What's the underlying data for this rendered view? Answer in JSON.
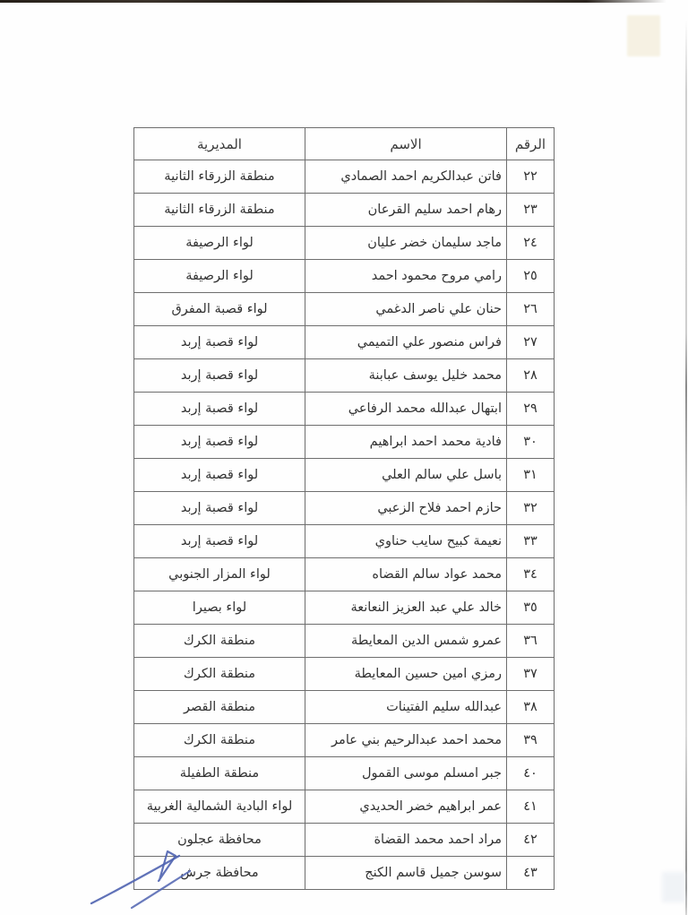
{
  "table": {
    "headers": {
      "number": "الرقم",
      "name": "الاسم",
      "directorate": "المديرية"
    },
    "rows": [
      {
        "number": "٢٢",
        "name": "فاتن عبدالكريم احمد الصمادي",
        "directorate": "منطقة الزرقاء الثانية"
      },
      {
        "number": "٢٣",
        "name": "رهام احمد سليم القرعان",
        "directorate": "منطقة الزرقاء الثانية"
      },
      {
        "number": "٢٤",
        "name": "ماجد سليمان خضر عليان",
        "directorate": "لواء الرصيفة"
      },
      {
        "number": "٢٥",
        "name": "رامي مروح محمود احمد",
        "directorate": "لواء الرصيفة"
      },
      {
        "number": "٢٦",
        "name": "حنان علي ناصر الدغمي",
        "directorate": "لواء قصبة المفرق"
      },
      {
        "number": "٢٧",
        "name": "فراس منصور علي التميمي",
        "directorate": "لواء قصبة إربد"
      },
      {
        "number": "٢٨",
        "name": "محمد خليل يوسف عبابنة",
        "directorate": "لواء قصبة إربد"
      },
      {
        "number": "٢٩",
        "name": "ابتهال عبدالله محمد الرفاعي",
        "directorate": "لواء قصبة إربد"
      },
      {
        "number": "٣٠",
        "name": "فادية محمد احمد ابراهيم",
        "directorate": "لواء قصبة إربد"
      },
      {
        "number": "٣١",
        "name": "باسل علي سالم العلي",
        "directorate": "لواء قصبة إربد"
      },
      {
        "number": "٣٢",
        "name": "حازم احمد فلاح الزعبي",
        "directorate": "لواء قصبة إربد"
      },
      {
        "number": "٣٣",
        "name": "نعيمة كبيح سايب حناوي",
        "directorate": "لواء قصبة إربد"
      },
      {
        "number": "٣٤",
        "name": "محمد عواد سالم القضاه",
        "directorate": "لواء المزار الجنوبي"
      },
      {
        "number": "٣٥",
        "name": "خالد علي عبد العزيز النعانعة",
        "directorate": "لواء بصيرا"
      },
      {
        "number": "٣٦",
        "name": "عمرو شمس الدين المعايطة",
        "directorate": "منطقة الكرك"
      },
      {
        "number": "٣٧",
        "name": "رمزي امين حسين المعايطة",
        "directorate": "منطقة الكرك"
      },
      {
        "number": "٣٨",
        "name": "عبدالله سليم الفتينات",
        "directorate": "منطقة القصر"
      },
      {
        "number": "٣٩",
        "name": "محمد احمد عبدالرحيم بني عامر",
        "directorate": "منطقة الكرك"
      },
      {
        "number": "٤٠",
        "name": "جبر امسلم موسى القمول",
        "directorate": "منطقة الطفيلة"
      },
      {
        "number": "٤١",
        "name": "عمر ابراهيم خضر الحديدي",
        "directorate": "لواء البادية الشمالية الغربية"
      },
      {
        "number": "٤٢",
        "name": "مراد احمد محمد القضاة",
        "directorate": "محافظة عجلون"
      },
      {
        "number": "٤٣",
        "name": "سوسن جميل قاسم الكنج",
        "directorate": "محافظة جرش"
      }
    ]
  },
  "signature": {
    "description": "handwritten-ink-signature",
    "ink_color": "#4f63b0"
  },
  "colors": {
    "table_border": "#6e6e6e",
    "text": "#333333",
    "scan_edge": "#262019",
    "yellow_mark": "#f0e8cd"
  }
}
